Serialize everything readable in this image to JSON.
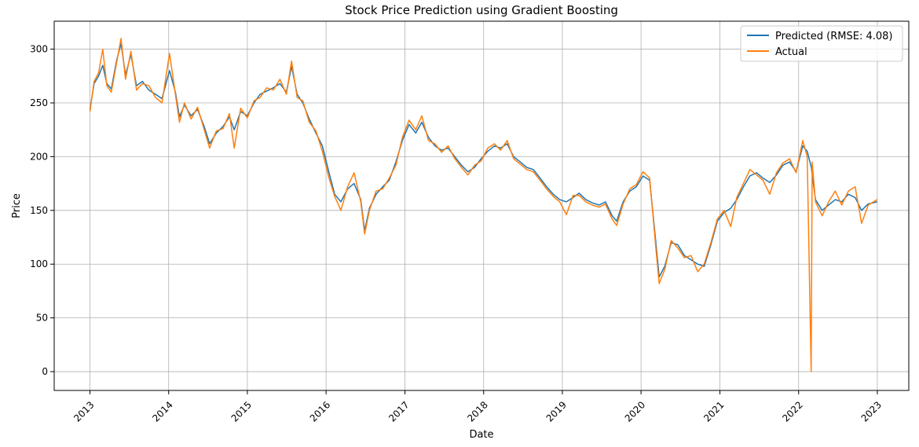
{
  "chart_data": {
    "type": "line",
    "title": "Stock Price Prediction using Gradient Boosting",
    "xlabel": "Date",
    "ylabel": "Price",
    "xlim": [
      "2012-07-19",
      "2023-05-27"
    ],
    "ylim": [
      -17.5,
      326
    ],
    "x_ticks": [
      "2013",
      "2014",
      "2015",
      "2016",
      "2017",
      "2018",
      "2019",
      "2020",
      "2021",
      "2022",
      "2023"
    ],
    "y_ticks": [
      0,
      50,
      100,
      150,
      200,
      250,
      300
    ],
    "grid": true,
    "legend_position": "top-right",
    "series": [
      {
        "name": "Predicted (RMSE: 4.08)",
        "color": "#1f77b4",
        "points": [
          [
            "2013-01-01",
            244
          ],
          [
            "2013-01-20",
            268
          ],
          [
            "2013-02-10",
            275
          ],
          [
            "2013-03-01",
            285
          ],
          [
            "2013-03-20",
            268
          ],
          [
            "2013-04-10",
            263
          ],
          [
            "2013-05-05",
            290
          ],
          [
            "2013-05-25",
            305
          ],
          [
            "2013-06-15",
            276
          ],
          [
            "2013-07-10",
            295
          ],
          [
            "2013-08-05",
            266
          ],
          [
            "2013-09-01",
            270
          ],
          [
            "2013-10-01",
            262
          ],
          [
            "2013-11-01",
            258
          ],
          [
            "2013-12-01",
            254
          ],
          [
            "2014-01-05",
            280
          ],
          [
            "2014-02-01",
            260
          ],
          [
            "2014-02-20",
            237
          ],
          [
            "2014-03-15",
            248
          ],
          [
            "2014-04-15",
            238
          ],
          [
            "2014-05-15",
            244
          ],
          [
            "2014-06-15",
            228
          ],
          [
            "2014-07-10",
            212
          ],
          [
            "2014-08-10",
            222
          ],
          [
            "2014-09-10",
            228
          ],
          [
            "2014-10-10",
            237
          ],
          [
            "2014-11-01",
            225
          ],
          [
            "2014-12-01",
            242
          ],
          [
            "2015-01-01",
            238
          ],
          [
            "2015-02-01",
            250
          ],
          [
            "2015-03-01",
            258
          ],
          [
            "2015-04-01",
            261
          ],
          [
            "2015-05-01",
            264
          ],
          [
            "2015-06-01",
            268
          ],
          [
            "2015-07-01",
            260
          ],
          [
            "2015-07-25",
            284
          ],
          [
            "2015-08-20",
            258
          ],
          [
            "2015-09-15",
            250
          ],
          [
            "2015-10-15",
            235
          ],
          [
            "2015-11-15",
            222
          ],
          [
            "2015-12-15",
            210
          ],
          [
            "2016-01-15",
            185
          ],
          [
            "2016-02-10",
            165
          ],
          [
            "2016-03-10",
            158
          ],
          [
            "2016-04-10",
            170
          ],
          [
            "2016-05-10",
            175
          ],
          [
            "2016-06-10",
            160
          ],
          [
            "2016-06-28",
            131
          ],
          [
            "2016-07-20",
            152
          ],
          [
            "2016-08-20",
            165
          ],
          [
            "2016-09-20",
            172
          ],
          [
            "2016-10-20",
            178
          ],
          [
            "2016-11-20",
            195
          ],
          [
            "2016-12-20",
            215
          ],
          [
            "2017-01-20",
            230
          ],
          [
            "2017-02-20",
            222
          ],
          [
            "2017-03-20",
            232
          ],
          [
            "2017-04-20",
            218
          ],
          [
            "2017-05-20",
            210
          ],
          [
            "2017-06-20",
            206
          ],
          [
            "2017-07-20",
            208
          ],
          [
            "2017-08-20",
            200
          ],
          [
            "2017-09-20",
            192
          ],
          [
            "2017-10-20",
            186
          ],
          [
            "2017-11-20",
            190
          ],
          [
            "2017-12-20",
            198
          ],
          [
            "2018-01-20",
            205
          ],
          [
            "2018-02-20",
            210
          ],
          [
            "2018-03-20",
            208
          ],
          [
            "2018-04-20",
            212
          ],
          [
            "2018-05-20",
            200
          ],
          [
            "2018-06-20",
            195
          ],
          [
            "2018-07-20",
            190
          ],
          [
            "2018-08-20",
            188
          ],
          [
            "2018-09-20",
            180
          ],
          [
            "2018-10-20",
            172
          ],
          [
            "2018-11-20",
            165
          ],
          [
            "2018-12-20",
            160
          ],
          [
            "2019-01-20",
            158
          ],
          [
            "2019-02-20",
            162
          ],
          [
            "2019-03-20",
            166
          ],
          [
            "2019-04-20",
            160
          ],
          [
            "2019-05-20",
            157
          ],
          [
            "2019-06-20",
            155
          ],
          [
            "2019-07-20",
            158
          ],
          [
            "2019-08-20",
            145
          ],
          [
            "2019-09-10",
            140
          ],
          [
            "2019-10-10",
            158
          ],
          [
            "2019-11-10",
            168
          ],
          [
            "2019-12-10",
            172
          ],
          [
            "2020-01-10",
            182
          ],
          [
            "2020-02-10",
            178
          ],
          [
            "2020-03-10",
            120
          ],
          [
            "2020-03-25",
            88
          ],
          [
            "2020-04-20",
            98
          ],
          [
            "2020-05-20",
            120
          ],
          [
            "2020-06-20",
            118
          ],
          [
            "2020-07-20",
            108
          ],
          [
            "2020-08-20",
            104
          ],
          [
            "2020-09-20",
            100
          ],
          [
            "2020-10-20",
            98
          ],
          [
            "2020-11-20",
            118
          ],
          [
            "2020-12-20",
            140
          ],
          [
            "2021-01-20",
            148
          ],
          [
            "2021-02-20",
            152
          ],
          [
            "2021-03-20",
            160
          ],
          [
            "2021-04-20",
            172
          ],
          [
            "2021-05-20",
            182
          ],
          [
            "2021-06-20",
            185
          ],
          [
            "2021-07-20",
            180
          ],
          [
            "2021-08-20",
            176
          ],
          [
            "2021-09-20",
            183
          ],
          [
            "2021-10-20",
            192
          ],
          [
            "2021-11-20",
            195
          ],
          [
            "2021-12-20",
            186
          ],
          [
            "2022-01-20",
            210
          ],
          [
            "2022-02-10",
            205
          ],
          [
            "2022-03-01",
            190
          ],
          [
            "2022-03-20",
            160
          ],
          [
            "2022-04-20",
            150
          ],
          [
            "2022-05-20",
            155
          ],
          [
            "2022-06-20",
            160
          ],
          [
            "2022-07-20",
            158
          ],
          [
            "2022-08-20",
            165
          ],
          [
            "2022-09-20",
            162
          ],
          [
            "2022-10-20",
            150
          ],
          [
            "2022-11-20",
            156
          ],
          [
            "2022-12-31",
            158
          ]
        ]
      },
      {
        "name": "Actual",
        "color": "#ff7f0e",
        "points": [
          [
            "2013-01-01",
            242
          ],
          [
            "2013-01-20",
            270
          ],
          [
            "2013-02-10",
            278
          ],
          [
            "2013-03-01",
            300
          ],
          [
            "2013-03-20",
            266
          ],
          [
            "2013-04-10",
            260
          ],
          [
            "2013-05-05",
            288
          ],
          [
            "2013-05-25",
            310
          ],
          [
            "2013-06-15",
            272
          ],
          [
            "2013-07-10",
            298
          ],
          [
            "2013-08-05",
            262
          ],
          [
            "2013-09-01",
            268
          ],
          [
            "2013-10-01",
            266
          ],
          [
            "2013-11-01",
            255
          ],
          [
            "2013-12-01",
            250
          ],
          [
            "2014-01-05",
            296
          ],
          [
            "2014-02-01",
            258
          ],
          [
            "2014-02-20",
            232
          ],
          [
            "2014-03-15",
            250
          ],
          [
            "2014-04-15",
            235
          ],
          [
            "2014-05-15",
            246
          ],
          [
            "2014-06-15",
            225
          ],
          [
            "2014-07-10",
            208
          ],
          [
            "2014-08-10",
            224
          ],
          [
            "2014-09-10",
            226
          ],
          [
            "2014-10-10",
            240
          ],
          [
            "2014-11-01",
            208
          ],
          [
            "2014-12-01",
            245
          ],
          [
            "2015-01-01",
            236
          ],
          [
            "2015-02-01",
            252
          ],
          [
            "2015-03-01",
            255
          ],
          [
            "2015-04-01",
            264
          ],
          [
            "2015-05-01",
            262
          ],
          [
            "2015-06-01",
            272
          ],
          [
            "2015-07-01",
            258
          ],
          [
            "2015-07-25",
            289
          ],
          [
            "2015-08-20",
            255
          ],
          [
            "2015-09-15",
            252
          ],
          [
            "2015-10-15",
            232
          ],
          [
            "2015-11-15",
            224
          ],
          [
            "2015-12-15",
            205
          ],
          [
            "2016-01-15",
            180
          ],
          [
            "2016-02-10",
            163
          ],
          [
            "2016-03-10",
            150
          ],
          [
            "2016-04-10",
            172
          ],
          [
            "2016-05-10",
            185
          ],
          [
            "2016-06-10",
            158
          ],
          [
            "2016-06-28",
            128
          ],
          [
            "2016-07-20",
            150
          ],
          [
            "2016-08-20",
            168
          ],
          [
            "2016-09-20",
            170
          ],
          [
            "2016-10-20",
            180
          ],
          [
            "2016-11-20",
            192
          ],
          [
            "2016-12-20",
            218
          ],
          [
            "2017-01-20",
            234
          ],
          [
            "2017-02-20",
            225
          ],
          [
            "2017-03-20",
            238
          ],
          [
            "2017-04-20",
            215
          ],
          [
            "2017-05-20",
            212
          ],
          [
            "2017-06-20",
            204
          ],
          [
            "2017-07-20",
            210
          ],
          [
            "2017-08-20",
            198
          ],
          [
            "2017-09-20",
            190
          ],
          [
            "2017-10-20",
            183
          ],
          [
            "2017-11-20",
            192
          ],
          [
            "2017-12-20",
            196
          ],
          [
            "2018-01-20",
            208
          ],
          [
            "2018-02-20",
            212
          ],
          [
            "2018-03-20",
            206
          ],
          [
            "2018-04-20",
            215
          ],
          [
            "2018-05-20",
            198
          ],
          [
            "2018-06-20",
            193
          ],
          [
            "2018-07-20",
            188
          ],
          [
            "2018-08-20",
            186
          ],
          [
            "2018-09-20",
            178
          ],
          [
            "2018-10-20",
            170
          ],
          [
            "2018-11-20",
            163
          ],
          [
            "2018-12-20",
            158
          ],
          [
            "2019-01-20",
            146
          ],
          [
            "2019-02-20",
            164
          ],
          [
            "2019-03-20",
            164
          ],
          [
            "2019-04-20",
            158
          ],
          [
            "2019-05-20",
            155
          ],
          [
            "2019-06-20",
            153
          ],
          [
            "2019-07-20",
            156
          ],
          [
            "2019-08-20",
            142
          ],
          [
            "2019-09-10",
            136
          ],
          [
            "2019-10-10",
            156
          ],
          [
            "2019-11-10",
            170
          ],
          [
            "2019-12-10",
            174
          ],
          [
            "2020-01-10",
            186
          ],
          [
            "2020-02-10",
            180
          ],
          [
            "2020-03-10",
            115
          ],
          [
            "2020-03-25",
            82
          ],
          [
            "2020-04-20",
            95
          ],
          [
            "2020-05-20",
            122
          ],
          [
            "2020-06-20",
            115
          ],
          [
            "2020-07-20",
            106
          ],
          [
            "2020-08-20",
            108
          ],
          [
            "2020-09-20",
            93
          ],
          [
            "2020-10-20",
            100
          ],
          [
            "2020-11-20",
            120
          ],
          [
            "2020-12-20",
            142
          ],
          [
            "2021-01-20",
            150
          ],
          [
            "2021-02-20",
            135
          ],
          [
            "2021-03-20",
            162
          ],
          [
            "2021-04-20",
            175
          ],
          [
            "2021-05-20",
            188
          ],
          [
            "2021-06-20",
            183
          ],
          [
            "2021-07-20",
            178
          ],
          [
            "2021-08-20",
            165
          ],
          [
            "2021-09-20",
            185
          ],
          [
            "2021-10-20",
            194
          ],
          [
            "2021-11-20",
            198
          ],
          [
            "2021-12-20",
            185
          ],
          [
            "2022-01-20",
            215
          ],
          [
            "2022-02-10",
            200
          ],
          [
            "2022-02-28",
            0
          ],
          [
            "2022-03-05",
            195
          ],
          [
            "2022-03-20",
            158
          ],
          [
            "2022-04-20",
            145
          ],
          [
            "2022-05-20",
            158
          ],
          [
            "2022-06-20",
            168
          ],
          [
            "2022-07-20",
            155
          ],
          [
            "2022-08-20",
            168
          ],
          [
            "2022-09-20",
            172
          ],
          [
            "2022-10-20",
            138
          ],
          [
            "2022-11-20",
            155
          ],
          [
            "2022-12-31",
            160
          ]
        ]
      }
    ]
  }
}
